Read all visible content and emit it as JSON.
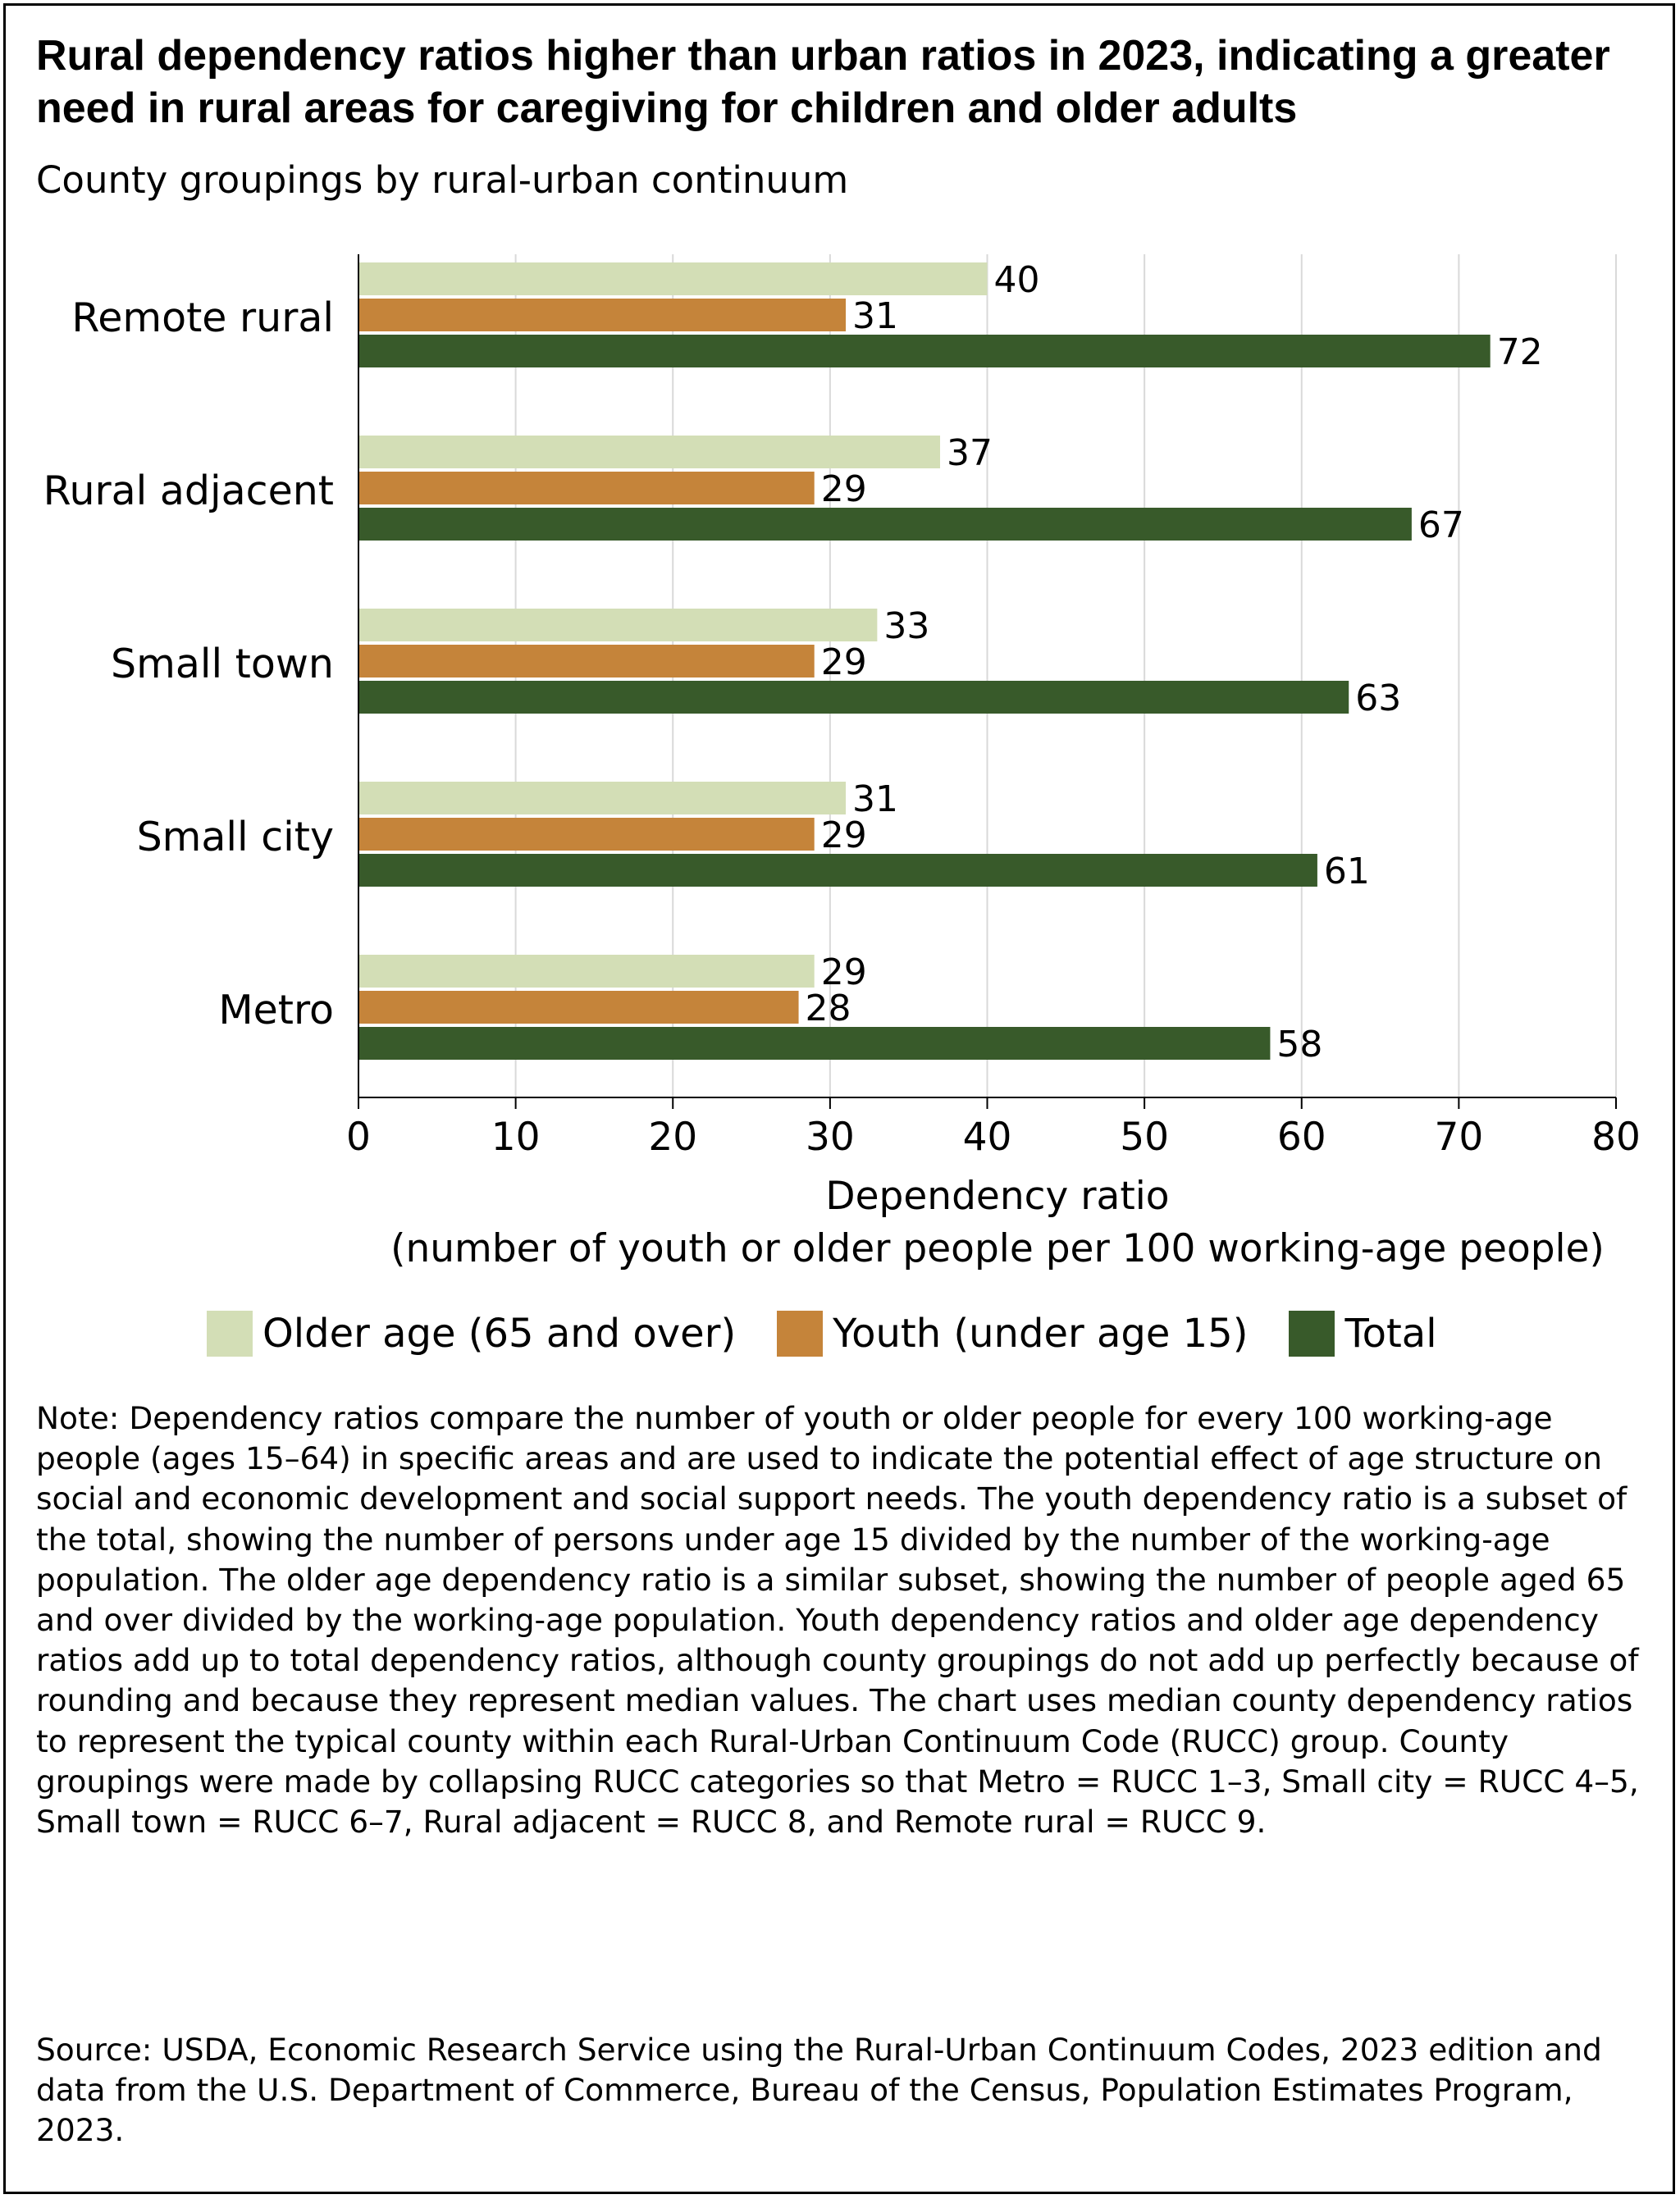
{
  "title": "Rural dependency ratios higher than urban ratios in 2023, indicating a greater need in rural areas for caregiving for children and older adults",
  "subtitle": "County groupings by rural-urban continuum",
  "chart_data": {
    "type": "bar",
    "orientation": "horizontal",
    "categories": [
      "Remote rural",
      "Rural adjacent",
      "Small town",
      "Small city",
      "Metro"
    ],
    "series": [
      {
        "name": "Older age (65 and over)",
        "color": "#d3deb6",
        "values": [
          40,
          37,
          33,
          31,
          29
        ]
      },
      {
        "name": "Youth (under age 15)",
        "color": "#c5843a",
        "values": [
          31,
          29,
          29,
          29,
          28
        ]
      },
      {
        "name": "Total",
        "color": "#385a2a",
        "values": [
          72,
          67,
          63,
          61,
          58
        ]
      }
    ],
    "xlim": [
      0,
      80
    ],
    "xticks": [
      0,
      10,
      20,
      30,
      40,
      50,
      60,
      70,
      80
    ],
    "xlabel_line1": "Dependency ratio",
    "xlabel_line2": "(number of youth or older people per 100 working-age people)",
    "grid": "vertical",
    "legend_position": "bottom"
  },
  "note": "Note: Dependency ratios compare the number of youth or older people for every 100 working-age people (ages 15–64) in specific areas and are used to indicate the potential effect of age structure on social and economic development and social support needs. The youth dependency ratio is a subset of the total, showing the number of persons under age 15 divided by the number of the working-age population. The older age dependency ratio is a similar subset, showing the number of people aged 65 and over divided by the working-age population. Youth dependency ratios and older age dependency ratios add up to total dependency ratios, although county groupings do not add up perfectly because of rounding and because they represent median values. The chart uses median county dependency ratios to represent the typical county within each Rural-Urban Continuum Code (RUCC) group. County groupings were made by collapsing RUCC categories so that Metro = RUCC 1–3, Small city = RUCC 4–5, Small town = RUCC 6–7, Rural adjacent = RUCC 8, and Remote rural = RUCC 9.",
  "source": "Source: USDA, Economic Research Service using the Rural-Urban Continuum Codes, 2023 edition and data from the U.S. Department of Commerce, Bureau of the Census, Population Estimates Program, 2023."
}
